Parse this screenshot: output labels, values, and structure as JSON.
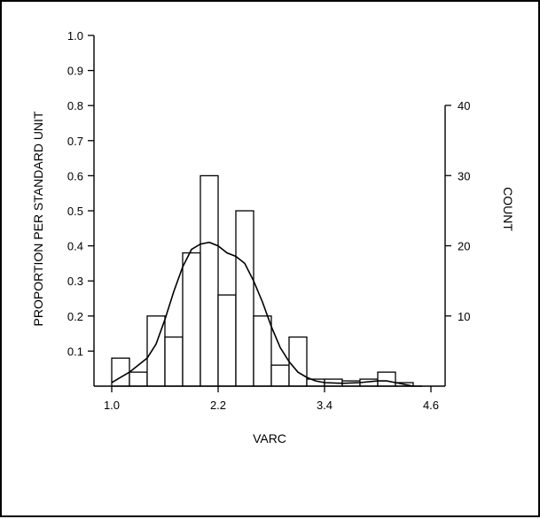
{
  "chart_data": {
    "type": "bar",
    "subtype": "histogram-with-density-curve",
    "xlabel": "VARC",
    "ylabel_left": "PROPORTION PER STANDARD UNIT",
    "ylabel_right": "COUNT",
    "x_ticks": [
      "1.0",
      "2.2",
      "3.4",
      "4.6"
    ],
    "x_tick_values": [
      1.0,
      2.2,
      3.4,
      4.6
    ],
    "xlim": [
      0.95,
      4.75
    ],
    "y_left_ticks": [
      "0.1",
      "0.2",
      "0.3",
      "0.4",
      "0.5",
      "0.6",
      "0.7",
      "0.8",
      "0.9",
      "1.0"
    ],
    "y_left_tick_values": [
      0.1,
      0.2,
      0.3,
      0.4,
      0.5,
      0.6,
      0.7,
      0.8,
      0.9,
      1.0
    ],
    "ylim_left": [
      0,
      1.0
    ],
    "y_right_ticks": [
      "10",
      "20",
      "30",
      "40"
    ],
    "y_right_tick_values": [
      10,
      20,
      30,
      40
    ],
    "ylim_right": [
      0,
      40
    ],
    "bins": [
      {
        "start": 1.0,
        "end": 1.2,
        "value": 0.08
      },
      {
        "start": 1.2,
        "end": 1.4,
        "value": 0.04
      },
      {
        "start": 1.4,
        "end": 1.6,
        "value": 0.2
      },
      {
        "start": 1.6,
        "end": 1.8,
        "value": 0.14
      },
      {
        "start": 1.8,
        "end": 2.0,
        "value": 0.38
      },
      {
        "start": 2.0,
        "end": 2.2,
        "value": 0.6
      },
      {
        "start": 2.2,
        "end": 2.4,
        "value": 0.26
      },
      {
        "start": 2.4,
        "end": 2.6,
        "value": 0.5
      },
      {
        "start": 2.6,
        "end": 2.8,
        "value": 0.2
      },
      {
        "start": 2.8,
        "end": 3.0,
        "value": 0.06
      },
      {
        "start": 3.0,
        "end": 3.2,
        "value": 0.14
      },
      {
        "start": 3.2,
        "end": 3.4,
        "value": 0.02
      },
      {
        "start": 3.4,
        "end": 3.6,
        "value": 0.02
      },
      {
        "start": 3.6,
        "end": 3.8,
        "value": 0.015
      },
      {
        "start": 3.8,
        "end": 4.0,
        "value": 0.02
      },
      {
        "start": 4.0,
        "end": 4.2,
        "value": 0.04
      },
      {
        "start": 4.2,
        "end": 4.4,
        "value": 0.01
      }
    ],
    "curve": {
      "x": [
        1.0,
        1.1,
        1.2,
        1.3,
        1.4,
        1.5,
        1.6,
        1.7,
        1.8,
        1.9,
        2.0,
        2.1,
        2.2,
        2.3,
        2.4,
        2.5,
        2.6,
        2.7,
        2.8,
        2.9,
        3.0,
        3.1,
        3.2,
        3.3,
        3.4,
        3.6,
        3.8,
        4.0,
        4.1,
        4.2,
        4.3,
        4.4,
        4.5
      ],
      "y": [
        0.01,
        0.025,
        0.04,
        0.06,
        0.08,
        0.12,
        0.19,
        0.27,
        0.34,
        0.39,
        0.405,
        0.41,
        0.4,
        0.38,
        0.37,
        0.35,
        0.3,
        0.24,
        0.17,
        0.11,
        0.07,
        0.04,
        0.025,
        0.015,
        0.01,
        0.008,
        0.01,
        0.015,
        0.015,
        0.01,
        0.005,
        0.0,
        0.0
      ]
    },
    "grid": false
  }
}
